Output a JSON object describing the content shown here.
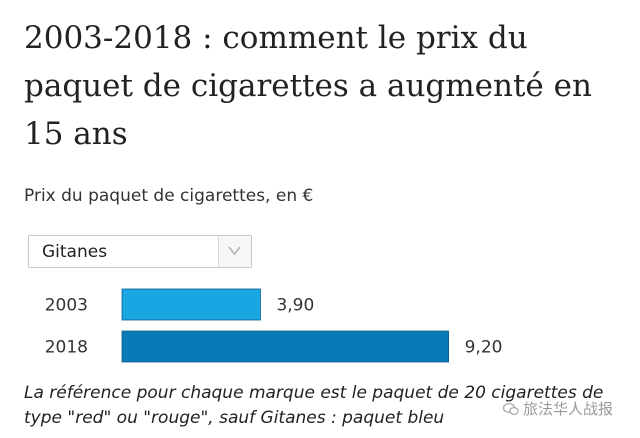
{
  "title": "2003-2018 : comment le prix du paquet de cigarettes a augmenté en 15 ans",
  "subtitle": "Prix du paquet de cigarettes, en €",
  "dropdown": {
    "selected": "Gitanes",
    "icon": "chevron-down-icon"
  },
  "chart_data": {
    "type": "bar",
    "orientation": "horizontal",
    "categories": [
      "2003",
      "2018"
    ],
    "values": [
      3.9,
      9.2
    ],
    "value_labels": [
      "3,90",
      "9,20"
    ],
    "colors": [
      "#1aa5e3",
      "#0a7ab7"
    ],
    "xlim": [
      0,
      10
    ],
    "grid": false
  },
  "note": "La référence pour chaque marque est le paquet de 20 cigarettes de type \"red\" ou \"rouge\", sauf Gitanes : paquet bleu",
  "watermark": {
    "text": "旅法华人战报",
    "icon": "chat-bubble-icon"
  }
}
